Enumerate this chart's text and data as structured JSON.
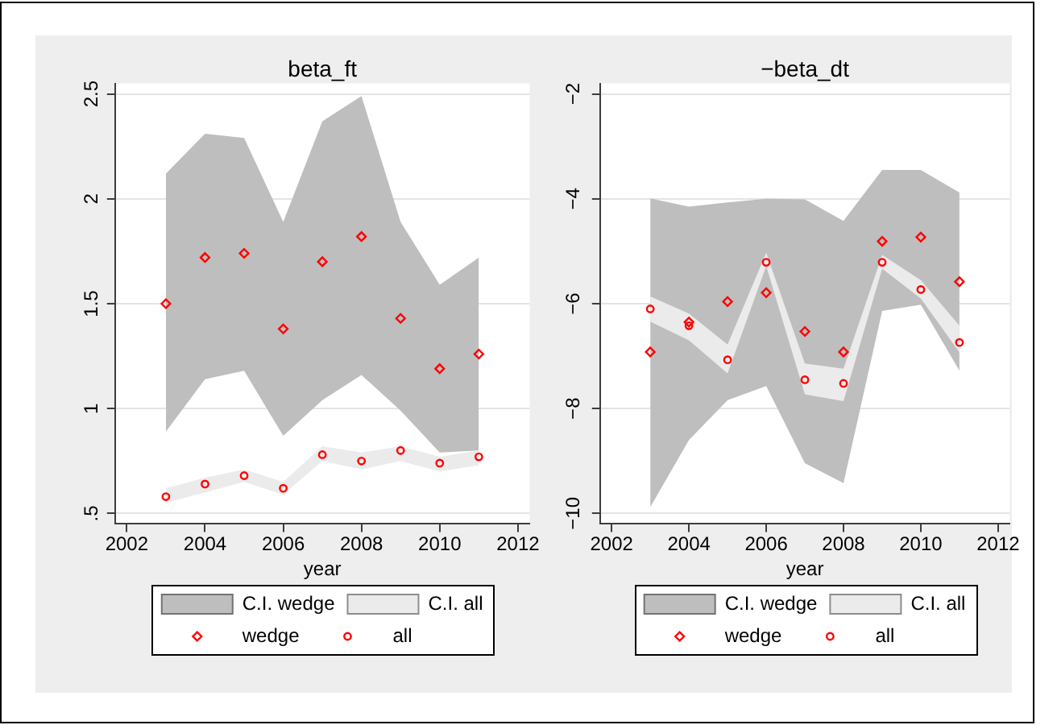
{
  "chart_data": [
    {
      "type": "scatter",
      "title": "beta_ft",
      "xlabel": "year",
      "x": [
        2003,
        2004,
        2005,
        2006,
        2007,
        2008,
        2009,
        2010,
        2011
      ],
      "xlim": [
        2001.7,
        2012.3
      ],
      "xticks": [
        2002,
        2004,
        2006,
        2008,
        2010,
        2012
      ],
      "ylim": [
        0.45,
        2.55
      ],
      "yticks": [
        {
          "value": 0.5,
          "label": ".5"
        },
        1,
        1.5,
        2,
        2.5
      ],
      "grid": "y",
      "legend": "bottom",
      "series": [
        {
          "name": "C.I. wedge",
          "type": "area",
          "color": "#bebebe",
          "values": [
            null,
            null,
            null,
            null,
            null,
            null,
            null,
            null,
            null
          ],
          "upper": [
            2.12,
            2.31,
            2.29,
            1.89,
            2.37,
            2.49,
            1.89,
            1.59,
            1.72
          ],
          "lower": [
            0.89,
            1.14,
            1.18,
            0.87,
            1.04,
            1.16,
            0.99,
            0.79,
            0.8
          ]
        },
        {
          "name": "C.I. all",
          "type": "area",
          "color": "#ebebeb",
          "values": [
            null,
            null,
            null,
            null,
            null,
            null,
            null,
            null,
            null
          ],
          "upper": [
            0.62,
            0.67,
            0.71,
            0.65,
            0.82,
            0.79,
            0.82,
            0.77,
            0.8
          ],
          "lower": [
            0.55,
            0.6,
            0.65,
            0.59,
            0.75,
            0.71,
            0.75,
            0.7,
            0.73
          ]
        },
        {
          "name": "wedge",
          "type": "scatter",
          "marker": "diamond",
          "color": "#ff0000",
          "values": [
            1.5,
            1.72,
            1.74,
            1.38,
            1.7,
            1.82,
            1.43,
            1.19,
            1.26
          ]
        },
        {
          "name": "all",
          "type": "scatter",
          "marker": "circle",
          "color": "#ff0000",
          "values": [
            0.58,
            0.64,
            0.68,
            0.62,
            0.78,
            0.75,
            0.8,
            0.74,
            0.77
          ]
        }
      ]
    },
    {
      "type": "scatter",
      "title": "−beta_dt",
      "xlabel": "year",
      "x": [
        2003,
        2004,
        2005,
        2006,
        2007,
        2008,
        2009,
        2010,
        2011
      ],
      "xlim": [
        2001.7,
        2012.3
      ],
      "xticks": [
        2002,
        2004,
        2006,
        2008,
        2010,
        2012
      ],
      "ylim": [
        -10.2,
        -1.8
      ],
      "yticks": [
        {
          "value": -10,
          "label": "−10"
        },
        {
          "value": -8,
          "label": "−8"
        },
        {
          "value": -6,
          "label": "−6"
        },
        {
          "value": -4,
          "label": "−4"
        },
        {
          "value": -2,
          "label": "−2"
        }
      ],
      "grid": "y",
      "legend": "bottom",
      "series": [
        {
          "name": "C.I. wedge",
          "type": "area",
          "color": "#bebebe",
          "values": [
            null,
            null,
            null,
            null,
            null,
            null,
            null,
            null,
            null
          ],
          "upper": [
            -3.99,
            -4.15,
            -4.07,
            -4.0,
            -4.01,
            -4.42,
            -3.45,
            -3.45,
            -3.88
          ],
          "lower": [
            -9.88,
            -8.6,
            -7.84,
            -7.57,
            -9.04,
            -9.42,
            -6.14,
            -6.02,
            -7.28
          ]
        },
        {
          "name": "C.I. all",
          "type": "area",
          "color": "#ebebeb",
          "values": [
            null,
            null,
            null,
            null,
            null,
            null,
            null,
            null,
            null
          ],
          "upper": [
            -5.86,
            -6.19,
            -6.78,
            -5.03,
            -7.14,
            -7.24,
            -5.07,
            -5.55,
            -6.42
          ],
          "lower": [
            -6.34,
            -6.7,
            -7.33,
            -5.28,
            -7.73,
            -7.86,
            -5.33,
            -5.9,
            -6.93
          ]
        },
        {
          "name": "wedge",
          "type": "scatter",
          "marker": "diamond",
          "color": "#ff0000",
          "values": [
            -6.92,
            -6.35,
            -5.96,
            -5.79,
            -6.53,
            -6.92,
            -4.81,
            -4.73,
            -5.58
          ]
        },
        {
          "name": "all",
          "type": "scatter",
          "marker": "circle",
          "color": "#ff0000",
          "values": [
            -6.1,
            -6.42,
            -7.07,
            -5.21,
            -7.45,
            -7.52,
            -5.21,
            -5.73,
            -6.74
          ]
        }
      ]
    }
  ]
}
